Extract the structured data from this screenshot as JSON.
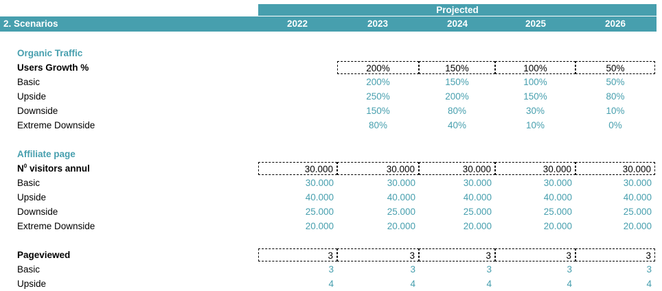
{
  "header": {
    "projected_label": "Projected",
    "section_title": "2. Scenarios",
    "years": [
      "2022",
      "2023",
      "2024",
      "2025",
      "2026"
    ]
  },
  "organic_traffic": {
    "title": "Organic Traffic",
    "main": {
      "label": "Users Growth %",
      "values": [
        "",
        "200%",
        "150%",
        "100%",
        "50%"
      ]
    },
    "rows": [
      {
        "label": "Basic",
        "values": [
          "",
          "200%",
          "150%",
          "100%",
          "50%"
        ]
      },
      {
        "label": "Upside",
        "values": [
          "",
          "250%",
          "200%",
          "150%",
          "80%"
        ]
      },
      {
        "label": "Downside",
        "values": [
          "",
          "150%",
          "80%",
          "30%",
          "10%"
        ]
      },
      {
        "label": "Extreme Downside",
        "values": [
          "",
          "80%",
          "40%",
          "10%",
          "0%"
        ]
      }
    ]
  },
  "affiliate_page": {
    "title": "Affiliate page",
    "main": {
      "label": "Nº visitors annul",
      "label_base": "N",
      "label_sup": "0",
      "label_rest": " visitors annul",
      "values": [
        "30.000",
        "30.000",
        "30.000",
        "30.000",
        "30.000"
      ]
    },
    "rows": [
      {
        "label": "Basic",
        "values": [
          "30.000",
          "30.000",
          "30.000",
          "30.000",
          "30.000"
        ]
      },
      {
        "label": "Upside",
        "values": [
          "40.000",
          "40.000",
          "40.000",
          "40.000",
          "40.000"
        ]
      },
      {
        "label": "Downside",
        "values": [
          "25.000",
          "25.000",
          "25.000",
          "25.000",
          "25.000"
        ]
      },
      {
        "label": "Extreme Downside",
        "values": [
          "20.000",
          "20.000",
          "20.000",
          "20.000",
          "20.000"
        ]
      }
    ]
  },
  "pageviewed": {
    "main": {
      "label": "Pageviewed",
      "values": [
        "3",
        "3",
        "3",
        "3",
        "3"
      ]
    },
    "rows": [
      {
        "label": "Basic",
        "values": [
          "3",
          "3",
          "3",
          "3",
          "3"
        ]
      },
      {
        "label": "Upside",
        "values": [
          "4",
          "4",
          "4",
          "4",
          "4"
        ]
      }
    ]
  },
  "colors": {
    "accent": "#479fae",
    "header_text": "#ffffff",
    "text": "#000000"
  }
}
